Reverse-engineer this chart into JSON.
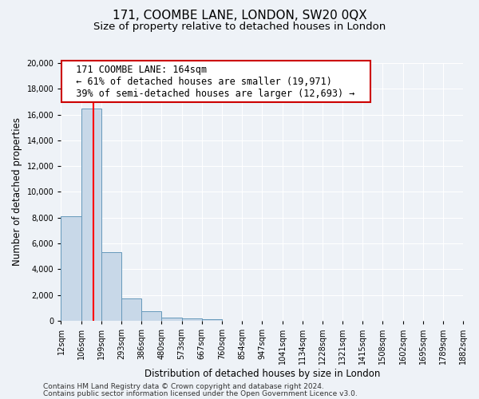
{
  "title": "171, COOMBE LANE, LONDON, SW20 0QX",
  "subtitle": "Size of property relative to detached houses in London",
  "xlabel": "Distribution of detached houses by size in London",
  "ylabel": "Number of detached properties",
  "bar_color": "#c8d8e8",
  "bar_edge_color": "#6699bb",
  "red_line_x": 164,
  "bin_edges": [
    12,
    106,
    199,
    293,
    386,
    480,
    573,
    667,
    760,
    854,
    947,
    1041,
    1134,
    1228,
    1321,
    1415,
    1508,
    1602,
    1695,
    1789,
    1882
  ],
  "bin_labels": [
    "12sqm",
    "106sqm",
    "199sqm",
    "293sqm",
    "386sqm",
    "480sqm",
    "573sqm",
    "667sqm",
    "760sqm",
    "854sqm",
    "947sqm",
    "1041sqm",
    "1134sqm",
    "1228sqm",
    "1321sqm",
    "1415sqm",
    "1508sqm",
    "1602sqm",
    "1695sqm",
    "1789sqm",
    "1882sqm"
  ],
  "values": [
    8100,
    16500,
    5300,
    1750,
    750,
    250,
    150,
    100,
    0,
    0,
    0,
    0,
    0,
    0,
    0,
    0,
    0,
    0,
    0,
    0
  ],
  "ylim": [
    0,
    20000
  ],
  "yticks": [
    0,
    2000,
    4000,
    6000,
    8000,
    10000,
    12000,
    14000,
    16000,
    18000,
    20000
  ],
  "annotation_title": "171 COOMBE LANE: 164sqm",
  "annotation_line1": "← 61% of detached houses are smaller (19,971)",
  "annotation_line2": "39% of semi-detached houses are larger (12,693) →",
  "annotation_box_color": "#ffffff",
  "annotation_box_edge": "#cc0000",
  "footer1": "Contains HM Land Registry data © Crown copyright and database right 2024.",
  "footer2": "Contains public sector information licensed under the Open Government Licence v3.0.",
  "background_color": "#eef2f7",
  "grid_color": "#ffffff",
  "title_fontsize": 11,
  "subtitle_fontsize": 9.5,
  "axis_label_fontsize": 8.5,
  "tick_fontsize": 7,
  "annotation_fontsize": 8.5,
  "footer_fontsize": 6.5
}
